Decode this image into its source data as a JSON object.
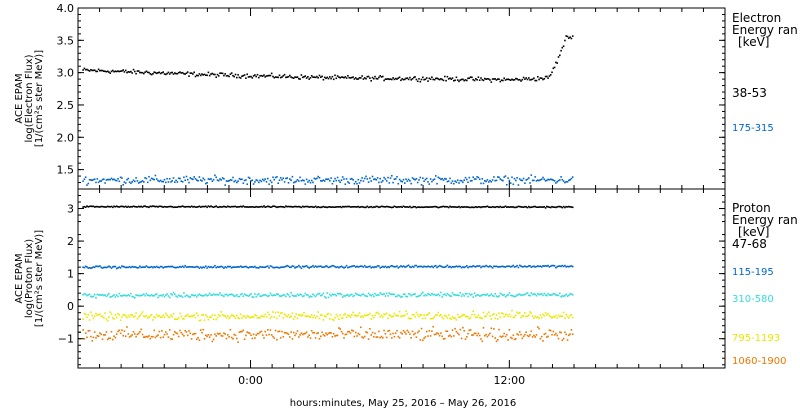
{
  "xlabel": "hours:minutes, May 25, 2016 – May 26, 2016",
  "x_ticks": [
    {
      "hour": 0,
      "label": "0:00"
    },
    {
      "hour": 12,
      "label": "12:00"
    }
  ],
  "chart_data": [
    {
      "type": "scatter",
      "panel": "electron",
      "ylabel_lines": [
        "ACE EPAM",
        "log(Electron Flux)",
        "[1/(cm²s ster MeV)]"
      ],
      "xlim": [
        -8,
        22
      ],
      "ylim": [
        1.2,
        4.0
      ],
      "y_ticks": [
        1.5,
        2.0,
        2.5,
        3.0,
        3.5,
        4.0
      ],
      "y_tick_labels": [
        "1.5",
        "2.0",
        "2.5",
        "3.0",
        "3.5",
        "4.0"
      ],
      "legend_title": [
        "Electron",
        "Energy ran",
        "[keV]"
      ],
      "series": [
        {
          "name": "38-53",
          "color": "#000000",
          "x_start": -7.8,
          "x_end": 14.9,
          "y_trend": [
            [
              -7.8,
              3.05
            ],
            [
              -2,
              2.98
            ],
            [
              4,
              2.93
            ],
            [
              8,
              2.92
            ],
            [
              12,
              2.9
            ],
            [
              13.8,
              2.93
            ],
            [
              14.2,
              3.2
            ],
            [
              14.6,
              3.55
            ],
            [
              14.9,
              3.57
            ]
          ],
          "spread": 0.05
        },
        {
          "name": "175-315",
          "color": "#0066cc",
          "x_start": -7.8,
          "x_end": 14.9,
          "y_trend": [
            [
              -7.8,
              1.35
            ],
            [
              14.9,
              1.35
            ]
          ],
          "spread": 0.09
        }
      ]
    },
    {
      "type": "scatter",
      "panel": "proton",
      "ylabel_lines": [
        "ACE EPAM",
        "log(Proton Flux)",
        "[1/(cm²s ster MeV)]"
      ],
      "xlim": [
        -8,
        22
      ],
      "ylim": [
        -1.9,
        3.6
      ],
      "y_ticks": [
        -1,
        0,
        1,
        2,
        3
      ],
      "y_tick_labels": [
        "−1",
        "0",
        "1",
        "2",
        "3"
      ],
      "legend_title": [
        "Proton",
        "Energy ran",
        "[keV]"
      ],
      "series": [
        {
          "name": "47-68",
          "color": "#000000",
          "x_start": -7.8,
          "x_end": 14.9,
          "y_trend": [
            [
              -7.8,
              3.08
            ],
            [
              14.9,
              3.07
            ]
          ],
          "spread": 0.03
        },
        {
          "name": "115-195",
          "color": "#0066cc",
          "x_start": -7.8,
          "x_end": 14.9,
          "y_trend": [
            [
              -7.8,
              1.22
            ],
            [
              14.9,
              1.25
            ]
          ],
          "spread": 0.05
        },
        {
          "name": "310-580",
          "color": "#33dddd",
          "x_start": -7.8,
          "x_end": 14.9,
          "y_trend": [
            [
              -7.8,
              0.35
            ],
            [
              14.9,
              0.38
            ]
          ],
          "spread": 0.1
        },
        {
          "name": "795-1193",
          "color": "#e8e800",
          "x_start": -7.8,
          "x_end": 14.9,
          "y_trend": [
            [
              -7.8,
              -0.3
            ],
            [
              14.9,
              -0.25
            ]
          ],
          "spread": 0.17
        },
        {
          "name": "1060-1900",
          "color": "#ee7700",
          "x_start": -7.8,
          "x_end": 14.9,
          "y_trend": [
            [
              -7.8,
              -0.85
            ],
            [
              14.9,
              -0.85
            ]
          ],
          "spread": 0.28
        }
      ]
    }
  ]
}
